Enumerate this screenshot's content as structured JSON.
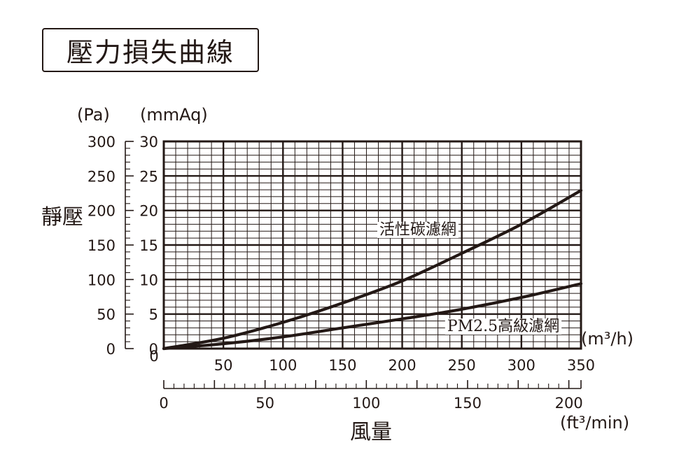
{
  "title": "壓力損失曲線",
  "chart_data": {
    "type": "line",
    "title": "壓力損失曲線",
    "ylabel": "靜壓",
    "xlabel": "風量",
    "y_unit_pa": "(Pa)",
    "y_unit_mmaq": "(mmAq)",
    "x_unit_m3h": "(m³/h)",
    "x_unit_ft3min": "(ft³/min)",
    "xlim_m3h": [
      0,
      350
    ],
    "ylim_pa": [
      0,
      300
    ],
    "ylim_mmaq": [
      0,
      30
    ],
    "xlim_ft3min": [
      0,
      206
    ],
    "x_ticks_m3h": [
      "50",
      "100",
      "150",
      "200",
      "250",
      "300",
      "350"
    ],
    "x_ticks_ft3min": [
      "0",
      "50",
      "100",
      "150",
      "200"
    ],
    "y_ticks_pa": [
      "0",
      "50",
      "100",
      "150",
      "200",
      "250",
      "300"
    ],
    "y_ticks_mmaq": [
      "0",
      "5",
      "10",
      "15",
      "20",
      "25",
      "30"
    ],
    "grid": true,
    "series": [
      {
        "name": "活性碳濾網",
        "unit_x": "m3/h",
        "unit_y": "Pa",
        "x": [
          0,
          50,
          100,
          150,
          200,
          250,
          300,
          350
        ],
        "y": [
          0,
          15,
          38,
          66,
          98,
          138,
          180,
          229
        ]
      },
      {
        "name": "PM2.5高級濾網",
        "unit_x": "m3/h",
        "unit_y": "Pa",
        "x": [
          0,
          50,
          100,
          150,
          200,
          250,
          300,
          350
        ],
        "y": [
          0,
          7,
          17,
          30,
          43,
          57,
          74,
          94
        ]
      }
    ]
  }
}
